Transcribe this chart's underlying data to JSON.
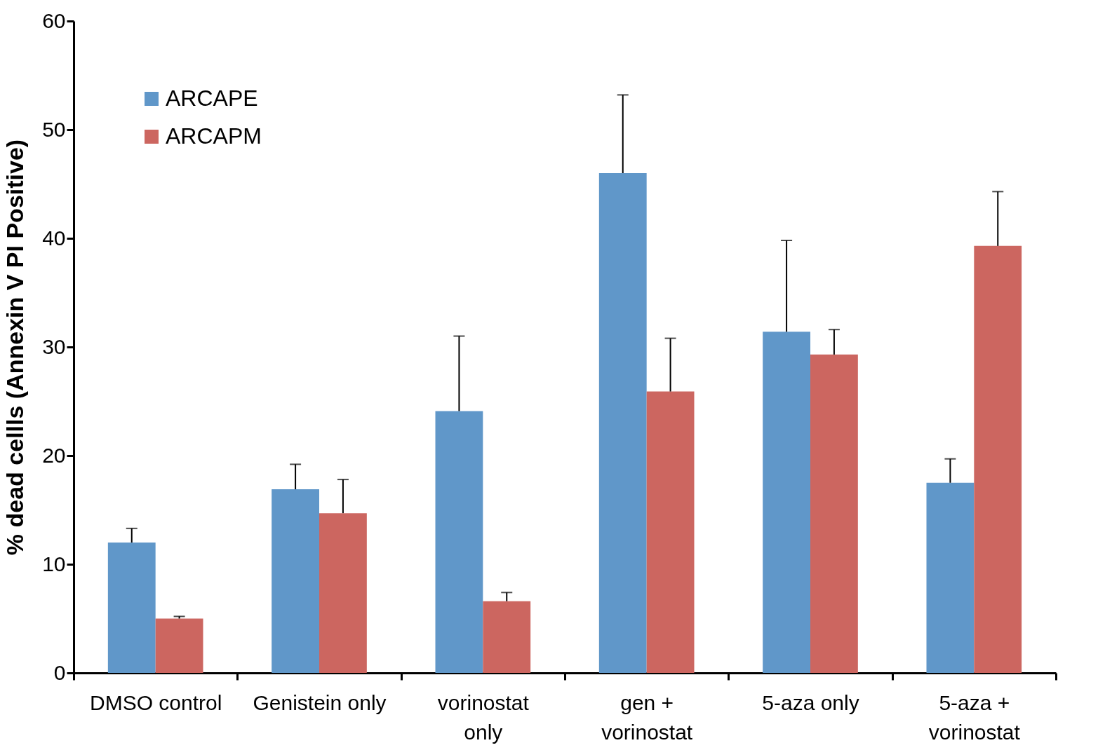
{
  "chart_data": {
    "type": "bar",
    "ylabel": "% dead cellls (Annexin V PI Positive)",
    "categories": [
      "DMSO control",
      "Genistein only",
      "vorinostat\nonly",
      "gen +\nvorinostat",
      "5-aza only",
      "5-aza +\nvorinostat"
    ],
    "series": [
      {
        "name": "ARCAPE",
        "color": "#6097c9",
        "values": [
          12.0,
          16.9,
          24.1,
          46.0,
          31.4,
          17.5
        ],
        "errors": [
          1.3,
          2.3,
          6.9,
          7.2,
          8.4,
          2.2
        ]
      },
      {
        "name": "ARCAPM",
        "color": "#cc6660",
        "values": [
          5.0,
          14.7,
          6.6,
          25.9,
          29.3,
          39.3
        ],
        "errors": [
          0.2,
          3.1,
          0.8,
          4.9,
          2.3,
          5.0
        ]
      }
    ],
    "ylim": [
      0,
      60
    ],
    "yticks": [
      0,
      10,
      20,
      30,
      40,
      50,
      60
    ],
    "grid": false,
    "legend": "top left"
  }
}
